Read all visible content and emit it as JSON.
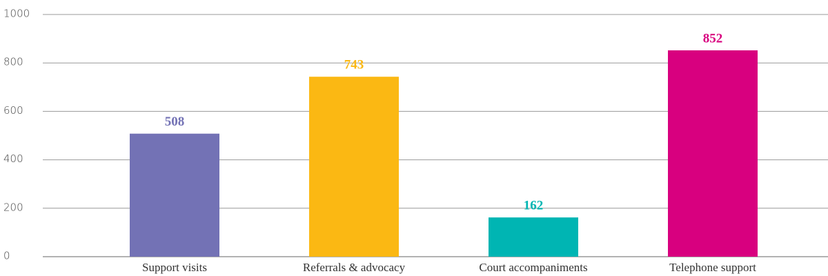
{
  "chart_data": {
    "type": "bar",
    "categories": [
      "Support visits",
      "Referrals & advocacy",
      "Court accompaniments",
      "Telephone support"
    ],
    "values": [
      508,
      743,
      162,
      852
    ],
    "colors": [
      "#7372b5",
      "#fbb813",
      "#00b5b3",
      "#d8007f"
    ],
    "ylim": [
      0,
      1000
    ],
    "yticks": [
      0,
      200,
      400,
      600,
      800,
      1000
    ],
    "grid": true
  }
}
